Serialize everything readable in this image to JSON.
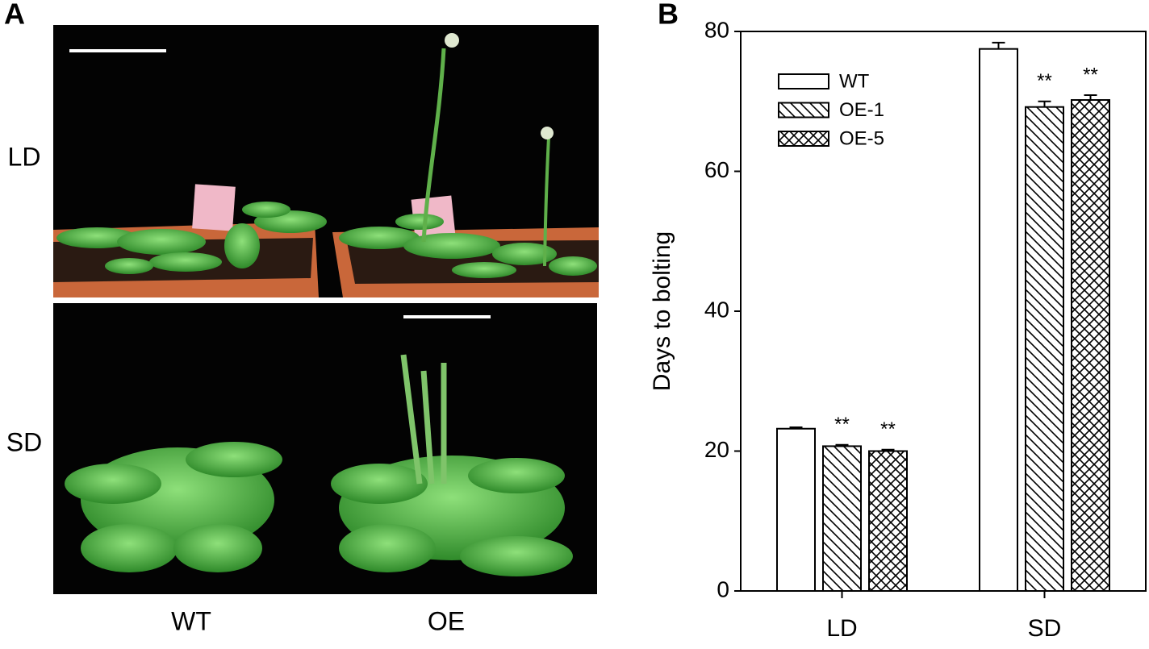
{
  "panel_a": {
    "label": "A",
    "rows": [
      "LD",
      "SD"
    ],
    "columns": [
      "WT",
      "OE"
    ]
  },
  "chart_data": {
    "type": "bar",
    "panel_label": "B",
    "ylabel": "Days to bolting",
    "categories": [
      "LD",
      "SD"
    ],
    "series": [
      {
        "name": "WT",
        "color": "#000000",
        "hatch": "none",
        "values": [
          23.2,
          77.5
        ],
        "errors": [
          0.2,
          0.9
        ]
      },
      {
        "name": "OE-1",
        "color": "#000000",
        "hatch": "diagonal",
        "values": [
          20.7,
          69.2
        ],
        "errors": [
          0.2,
          0.8
        ],
        "annotations": [
          "**",
          "**"
        ]
      },
      {
        "name": "OE-5",
        "color": "#000000",
        "hatch": "cross",
        "values": [
          20.0,
          70.2
        ],
        "errors": [
          0.2,
          0.7
        ],
        "annotations": [
          "**",
          "**"
        ]
      }
    ],
    "ylim": [
      0,
      80
    ],
    "yticks": [
      0,
      20,
      40,
      60,
      80
    ],
    "grid": false,
    "legend": "upper left"
  }
}
